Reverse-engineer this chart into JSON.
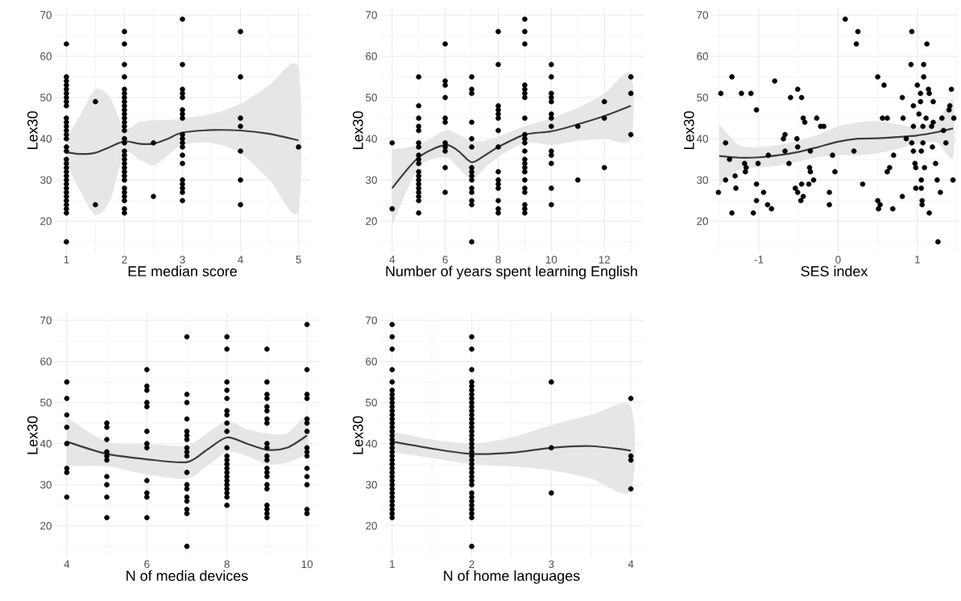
{
  "chart_data": [
    {
      "type": "scatter",
      "xlabel": "EE median score",
      "ylabel": "Lex30",
      "xlim": [
        0.8,
        5.2
      ],
      "ylim": [
        12.3,
        71.7
      ],
      "xticks": [
        1,
        {
          "value": 1.5,
          "label": null
        },
        2,
        {
          "value": 2.5,
          "label": null
        },
        3,
        {
          "value": 3.5,
          "label": null
        },
        4,
        {
          "value": 4.5,
          "label": null
        },
        5
      ],
      "yticks": [
        {
          "value": 15,
          "label": null
        },
        20,
        {
          "value": 25,
          "label": null
        },
        30,
        {
          "value": 35,
          "label": null
        },
        40,
        {
          "value": 45,
          "label": null
        },
        50,
        {
          "value": 55,
          "label": null
        },
        60,
        {
          "value": 65,
          "label": null
        },
        70
      ],
      "grid": true,
      "series": [
        {
          "marker": "circle",
          "color": "#000000",
          "x": [
            1,
            1,
            1,
            1,
            1,
            1,
            1,
            1,
            1,
            1,
            1,
            1,
            1,
            1,
            1,
            1,
            1,
            1,
            1,
            1,
            1,
            1,
            1,
            1,
            1,
            1,
            1,
            1,
            1,
            1,
            1,
            1,
            1.5,
            1.5,
            2,
            2,
            2,
            2,
            2,
            2,
            2,
            2,
            2,
            2,
            2,
            2,
            2,
            2,
            2,
            2,
            2,
            2,
            2,
            2,
            2,
            2,
            2,
            2,
            2,
            2,
            2,
            2,
            2,
            2,
            2,
            2.5,
            2.5,
            3,
            3,
            3,
            3,
            3,
            3,
            3,
            3,
            3,
            3,
            3,
            3,
            3,
            3,
            3,
            3,
            3,
            3,
            3,
            4,
            4,
            4,
            4,
            4,
            4,
            4,
            5
          ],
          "values": [
            15,
            22,
            23,
            24,
            25,
            26,
            27,
            28,
            29,
            30,
            31,
            32,
            33,
            34,
            35,
            37,
            38,
            40,
            41,
            42,
            43,
            44,
            45,
            48,
            49,
            50,
            51,
            52,
            53,
            54,
            55,
            63,
            49,
            24,
            22,
            23,
            25,
            26,
            27,
            28,
            30,
            31,
            32,
            33,
            34,
            35,
            36,
            37,
            39,
            40,
            42,
            43,
            44,
            45,
            46,
            47,
            48,
            49,
            50,
            51,
            52,
            55,
            58,
            63,
            66,
            26,
            39,
            25,
            27,
            28,
            29,
            30,
            34,
            36,
            38,
            39,
            40,
            41,
            45,
            46,
            47,
            50,
            51,
            52,
            58,
            69,
            24,
            30,
            37,
            43,
            45,
            55,
            66,
            38
          ]
        },
        {
          "type": "line",
          "color": "#3d3d3d",
          "x": [
            1,
            1.25,
            1.5,
            1.75,
            2,
            2.25,
            2.5,
            2.75,
            3,
            3.5,
            4,
            4.5,
            5
          ],
          "values": [
            36.7,
            36.3,
            36.6,
            38,
            39.4,
            38.8,
            38.8,
            40,
            41.5,
            42.1,
            42,
            41.2,
            39.6
          ],
          "lower": [
            34,
            27,
            21.5,
            25,
            36.5,
            35,
            33.5,
            36,
            38.5,
            39,
            36.5,
            30,
            22.5
          ],
          "upper": [
            40,
            46,
            52,
            50,
            42.5,
            44,
            44.5,
            44.5,
            45,
            46,
            48.5,
            53,
            57
          ]
        }
      ]
    },
    {
      "type": "scatter",
      "xlabel": "Number of years spent learning English",
      "ylabel": "Lex30",
      "xlim": [
        3.55,
        13.45
      ],
      "ylim": [
        12.3,
        71.7
      ],
      "xticks": [
        4,
        {
          "value": 5,
          "label": null
        },
        6,
        {
          "value": 7,
          "label": null
        },
        8,
        {
          "value": 9,
          "label": null
        },
        10,
        {
          "value": 11,
          "label": null
        },
        12,
        {
          "value": 13,
          "label": null
        }
      ],
      "yticks": [
        {
          "value": 15,
          "label": null
        },
        20,
        {
          "value": 25,
          "label": null
        },
        30,
        {
          "value": 35,
          "label": null
        },
        40,
        {
          "value": 45,
          "label": null
        },
        50,
        {
          "value": 55,
          "label": null
        },
        60,
        {
          "value": 65,
          "label": null
        },
        70
      ],
      "grid": true,
      "series": [
        {
          "marker": "circle",
          "color": "#000000",
          "x": [
            4,
            4,
            5,
            5,
            5,
            5,
            5,
            5,
            5,
            5,
            5,
            5,
            5,
            5,
            5,
            5,
            5,
            5,
            5,
            5,
            5,
            6,
            6,
            6,
            6,
            6,
            6,
            6,
            6,
            6,
            6,
            6,
            7,
            7,
            7,
            7,
            7,
            7,
            7,
            7,
            7,
            7,
            7,
            7,
            7,
            7,
            7,
            8,
            8,
            8,
            8,
            8,
            8,
            8,
            8,
            8,
            8,
            8,
            8,
            8,
            8,
            8,
            9,
            9,
            9,
            9,
            9,
            9,
            9,
            9,
            9,
            9,
            9,
            9,
            9,
            9,
            9,
            9,
            9,
            9,
            9,
            9,
            9,
            9,
            10,
            10,
            10,
            10,
            10,
            10,
            10,
            10,
            10,
            10,
            10,
            10,
            10,
            11,
            11,
            12,
            12,
            12,
            13,
            13,
            13
          ],
          "values": [
            23,
            39,
            22,
            25,
            26,
            27,
            28,
            29,
            30,
            31,
            32,
            34,
            35,
            36,
            38,
            39,
            42,
            43,
            45,
            48,
            55,
            27,
            33,
            37,
            38,
            39,
            44,
            45,
            50,
            53,
            54,
            63,
            15,
            24,
            25,
            27,
            28,
            30,
            31,
            32,
            33,
            38,
            40,
            44,
            51,
            52,
            55,
            22,
            23,
            25,
            28,
            29,
            30,
            32,
            38,
            42,
            45,
            46,
            47,
            48,
            58,
            66,
            22,
            23,
            24,
            27,
            28,
            30,
            32,
            33,
            34,
            35,
            37,
            39,
            40,
            41,
            45,
            50,
            51,
            52,
            53,
            63,
            66,
            69,
            24,
            28,
            34,
            36,
            37,
            43,
            45,
            46,
            49,
            50,
            51,
            55,
            58,
            30,
            43,
            33,
            45,
            49,
            41,
            51,
            55
          ]
        },
        {
          "type": "line",
          "color": "#3d3d3d",
          "x": [
            4,
            5,
            6,
            6.5,
            7,
            7.5,
            8,
            9,
            10,
            11,
            12,
            13
          ],
          "values": [
            28,
            35.5,
            38.5,
            37,
            34.3,
            36,
            38,
            41,
            41.8,
            43.5,
            45.5,
            48
          ],
          "lower": [
            19,
            33,
            35.5,
            33,
            30,
            33,
            35.5,
            39,
            38.5,
            39.5,
            40,
            40
          ],
          "upper": [
            37.5,
            38.5,
            42,
            41,
            39.5,
            39.5,
            40.5,
            43,
            45,
            47.5,
            51,
            56
          ]
        }
      ]
    },
    {
      "type": "scatter",
      "xlabel": "SES index",
      "ylabel": "Lex30",
      "xlim": [
        -1.6,
        1.5
      ],
      "ylim": [
        12.3,
        71.7
      ],
      "xticks": [
        {
          "value": -1.5,
          "label": null
        },
        -1,
        {
          "value": -0.5,
          "label": null
        },
        0,
        {
          "value": 0.5,
          "label": null
        },
        1,
        {
          "value": 1.5,
          "label": null
        }
      ],
      "yticks": [
        {
          "value": 15,
          "label": null
        },
        20,
        {
          "value": 25,
          "label": null
        },
        30,
        {
          "value": 35,
          "label": null
        },
        40,
        {
          "value": 45,
          "label": null
        },
        50,
        {
          "value": 55,
          "label": null
        },
        60,
        {
          "value": 65,
          "label": null
        },
        70
      ],
      "grid": true,
      "series": [
        {
          "marker": "circle",
          "color": "#000000",
          "x": [
            -1.51,
            -1.48,
            -1.42,
            -1.42,
            -1.37,
            -1.34,
            -1.34,
            -1.3,
            -1.29,
            -1.22,
            -1.18,
            -1.16,
            -1.17,
            -1.1,
            -1.07,
            -1.03,
            -1.01,
            -1.03,
            -1.03,
            -0.94,
            -0.88,
            -0.89,
            -0.84,
            -0.8,
            -0.69,
            -0.67,
            -0.67,
            -0.62,
            -0.6,
            -0.51,
            -0.52,
            -0.51,
            -0.54,
            -0.51,
            -0.47,
            -0.46,
            -0.46,
            -0.44,
            -0.42,
            -0.44,
            -0.35,
            -0.36,
            -0.35,
            -0.37,
            -0.31,
            -0.27,
            -0.22,
            -0.18,
            -0.11,
            -0.11,
            -0.07,
            -0.04,
            0.09,
            0.25,
            0.23,
            0.2,
            0.31,
            0.5,
            0.5,
            0.51,
            0.53,
            0.58,
            0.56,
            0.62,
            0.62,
            0.65,
            0.7,
            0.69,
            0.81,
            0.82,
            0.81,
            0.93,
            0.92,
            0.95,
            0.95,
            0.86,
            0.93,
            0.95,
            0.97,
            0.98,
            0.98,
            1.0,
            1.02,
            1.04,
            1.04,
            1.05,
            1.05,
            1.05,
            1.06,
            1.06,
            1.07,
            1.07,
            1.08,
            1.08,
            1.09,
            1.11,
            1.12,
            1.14,
            1.15,
            1.15,
            1.18,
            1.19,
            1.2,
            1.2,
            1.23,
            1.25,
            1.26,
            1.29,
            1.31,
            1.36,
            1.33,
            1.4,
            1.41,
            1.43,
            1.46,
            1.45
          ],
          "values": [
            27,
            51,
            39,
            30,
            35,
            55,
            22,
            31,
            28,
            51,
            34,
            33,
            32,
            51,
            22,
            47,
            34,
            29,
            25,
            27,
            36,
            24,
            23,
            54,
            40,
            41,
            37,
            34,
            50,
            52,
            40,
            38,
            28,
            27,
            25,
            29,
            50,
            45,
            44,
            26,
            37,
            33,
            32,
            29,
            30,
            45,
            43,
            43,
            27,
            24,
            36,
            32,
            69,
            66,
            63,
            37,
            29,
            55,
            25,
            23,
            24,
            53,
            45,
            45,
            32,
            33,
            36,
            23,
            50,
            45,
            26,
            66,
            58,
            48,
            43,
            40,
            39,
            37,
            34,
            33,
            28,
            53,
            46,
            49,
            51,
            37,
            30,
            28,
            25,
            24,
            39,
            43,
            58,
            55,
            33,
            45,
            63,
            52,
            51,
            22,
            43,
            38,
            49,
            44,
            34,
            30,
            15,
            27,
            45,
            39,
            42,
            47,
            48,
            52,
            45,
            30
          ]
        },
        {
          "type": "line",
          "color": "#3d3d3d",
          "x": [
            -1.5,
            -1.25,
            -1,
            -0.75,
            -0.5,
            -0.25,
            0,
            0.25,
            0.5,
            0.75,
            1,
            1.25,
            1.45
          ],
          "values": [
            35.8,
            35.4,
            35.5,
            36,
            36.8,
            38,
            39.3,
            40,
            40.1,
            40.4,
            40.8,
            41.6,
            42.5
          ],
          "lower": [
            28.5,
            32.5,
            33,
            33.5,
            34.5,
            35.5,
            36,
            36,
            36.5,
            37.5,
            38.8,
            39,
            35.5
          ],
          "upper": [
            43.5,
            38.5,
            38,
            38.5,
            39.5,
            41,
            43,
            44,
            44.3,
            43.5,
            42.8,
            44.5,
            49.5
          ]
        }
      ]
    },
    {
      "type": "scatter",
      "xlabel": "N of media devices",
      "ylabel": "Lex30",
      "xlim": [
        3.7,
        10.3
      ],
      "ylim": [
        12.3,
        71.7
      ],
      "xticks": [
        4,
        {
          "value": 5,
          "label": null
        },
        6,
        {
          "value": 7,
          "label": null
        },
        8,
        {
          "value": 9,
          "label": null
        },
        10
      ],
      "yticks": [
        {
          "value": 15,
          "label": null
        },
        20,
        {
          "value": 25,
          "label": null
        },
        30,
        {
          "value": 35,
          "label": null
        },
        40,
        {
          "value": 45,
          "label": null
        },
        50,
        {
          "value": 55,
          "label": null
        },
        60,
        {
          "value": 65,
          "label": null
        },
        70
      ],
      "grid": true,
      "series": [
        {
          "marker": "circle",
          "color": "#000000",
          "x": [
            4,
            4,
            4,
            4,
            4,
            4,
            4,
            4,
            5,
            5,
            5,
            5,
            5,
            5,
            5,
            5,
            5,
            5,
            6,
            6,
            6,
            6,
            6,
            6,
            6,
            6,
            6,
            6,
            6,
            6,
            7,
            7,
            7,
            7,
            7,
            7,
            7,
            7,
            7,
            7,
            7,
            7,
            7,
            7,
            7,
            7,
            7,
            7,
            8,
            8,
            8,
            8,
            8,
            8,
            8,
            8,
            8,
            8,
            8,
            8,
            8,
            8,
            8,
            8,
            8,
            8,
            8,
            8,
            8,
            8,
            9,
            9,
            9,
            9,
            9,
            9,
            9,
            9,
            9,
            9,
            9,
            9,
            9,
            9,
            9,
            9,
            9,
            9,
            9,
            9,
            9,
            10,
            10,
            10,
            10,
            10,
            10,
            10,
            10,
            10,
            10,
            10,
            10,
            10,
            10,
            10
          ],
          "values": [
            27,
            33,
            34,
            40,
            44,
            47,
            51,
            55,
            22,
            27,
            30,
            32,
            36,
            37,
            38,
            41,
            44,
            45,
            22,
            27,
            28,
            31,
            39,
            40,
            43,
            49,
            50,
            53,
            54,
            58,
            15,
            23,
            24,
            26,
            27,
            29,
            30,
            33,
            37,
            38,
            39,
            41,
            42,
            43,
            46,
            50,
            52,
            66,
            25,
            27,
            28,
            29,
            30,
            31,
            32,
            33,
            34,
            35,
            36,
            37,
            39,
            43,
            45,
            47,
            48,
            51,
            53,
            55,
            63,
            66,
            22,
            23,
            24,
            25,
            29,
            30,
            32,
            33,
            34,
            36,
            37,
            39,
            40,
            45,
            46,
            48,
            49,
            51,
            52,
            55,
            63,
            23,
            24,
            30,
            32,
            34,
            37,
            38,
            39,
            43,
            45,
            46,
            51,
            52,
            58,
            69
          ]
        },
        {
          "type": "line",
          "color": "#3d3d3d",
          "x": [
            4,
            5,
            6,
            7,
            7.5,
            8,
            8.5,
            9,
            9.5,
            10
          ],
          "values": [
            40.5,
            37.5,
            36.2,
            35.5,
            38.5,
            41.5,
            40,
            38.5,
            39,
            42
          ],
          "lower": [
            34.5,
            34.5,
            32.5,
            31.5,
            34.5,
            38,
            37,
            35,
            35.5,
            38
          ],
          "upper": [
            46.5,
            40.5,
            40,
            39.5,
            42.5,
            45.5,
            43.5,
            42.5,
            42.5,
            46.5
          ]
        }
      ]
    },
    {
      "type": "scatter",
      "xlabel": "N of home languages",
      "ylabel": "Lex30",
      "xlim": [
        0.85,
        4.15
      ],
      "ylim": [
        12.3,
        71.7
      ],
      "xticks": [
        1,
        {
          "value": 1.5,
          "label": null
        },
        2,
        {
          "value": 2.5,
          "label": null
        },
        3,
        {
          "value": 3.5,
          "label": null
        },
        4
      ],
      "yticks": [
        {
          "value": 15,
          "label": null
        },
        20,
        {
          "value": 25,
          "label": null
        },
        30,
        {
          "value": 35,
          "label": null
        },
        40,
        {
          "value": 45,
          "label": null
        },
        50,
        {
          "value": 55,
          "label": null
        },
        60,
        {
          "value": 65,
          "label": null
        },
        70
      ],
      "grid": true,
      "series": [
        {
          "marker": "circle",
          "color": "#000000",
          "x": [
            1,
            1,
            1,
            1,
            1,
            1,
            1,
            1,
            1,
            1,
            1,
            1,
            1,
            1,
            1,
            1,
            1,
            1,
            1,
            1,
            1,
            1,
            1,
            1,
            1,
            1,
            1,
            1,
            1,
            1,
            1,
            1,
            1,
            1,
            1,
            1,
            1,
            2,
            2,
            2,
            2,
            2,
            2,
            2,
            2,
            2,
            2,
            2,
            2,
            2,
            2,
            2,
            2,
            2,
            2,
            2,
            2,
            2,
            2,
            2,
            2,
            2,
            2,
            2,
            2,
            2,
            2,
            2,
            2,
            2,
            2,
            2,
            2,
            2,
            3,
            3,
            3,
            4,
            4,
            4,
            4
          ],
          "values": [
            22,
            23,
            24,
            25,
            26,
            27,
            28,
            29,
            30,
            31,
            32,
            33,
            34,
            35,
            36,
            37,
            38,
            39,
            40,
            41,
            42,
            43,
            44,
            45,
            46,
            47,
            48,
            49,
            50,
            51,
            52,
            53,
            55,
            58,
            63,
            66,
            69,
            15,
            22,
            23,
            24,
            25,
            26,
            27,
            28,
            30,
            31,
            32,
            33,
            34,
            35,
            36,
            37,
            38,
            39,
            40,
            41,
            42,
            43,
            44,
            45,
            46,
            47,
            48,
            49,
            50,
            51,
            52,
            53,
            54,
            55,
            58,
            63,
            66,
            28,
            39,
            55,
            29,
            36,
            37,
            51
          ]
        },
        {
          "type": "line",
          "color": "#3d3d3d",
          "x": [
            1,
            1.5,
            2,
            2.5,
            3,
            3.5,
            4
          ],
          "values": [
            40.5,
            38.8,
            37.5,
            37.8,
            39,
            39.4,
            38.3
          ],
          "lower": [
            38,
            36.5,
            35,
            34.5,
            33.5,
            31.5,
            28.5
          ],
          "upper": [
            43,
            41,
            40,
            41.5,
            44.5,
            47,
            49
          ]
        }
      ]
    }
  ]
}
